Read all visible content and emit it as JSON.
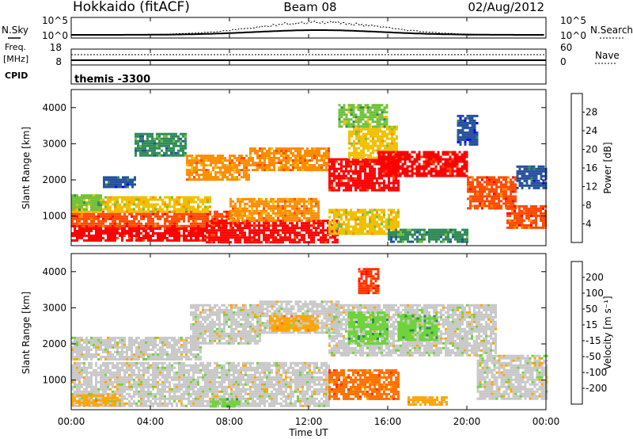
{
  "header": {
    "station": "Hokkaido (fitACF)",
    "beam": "Beam 08",
    "date": "02/Aug/2012"
  },
  "chart_data": {
    "type": "heatmap",
    "time_axis": {
      "label": "Time UT",
      "ticks": [
        "00:00",
        "04:00",
        "08:00",
        "12:00",
        "16:00",
        "20:00",
        "00:00"
      ],
      "range_hours": [
        0,
        24
      ]
    },
    "noise_panel": {
      "left_label": "N.Sky",
      "right_label": "N.Search",
      "left_ticks": [
        "10^5",
        "10^0"
      ],
      "right_ticks": [
        "10^5",
        "10^0"
      ]
    },
    "freq_panel": {
      "left_label_1": "Freq.",
      "left_label_2": "[MHz]",
      "right_label": "Nave",
      "left_ticks": [
        "18",
        "8"
      ],
      "right_ticks": [
        "60",
        "0"
      ]
    },
    "cpid_panel": {
      "label": "CPID",
      "value": "themis -3300"
    },
    "power_panel": {
      "ylabel": "Slant Range [km]",
      "yticks": [
        1000,
        2000,
        3000,
        4000
      ],
      "ylim": [
        180,
        4500
      ],
      "colorbar_label": "Power [dB]",
      "colorbar_ticks": [
        "28",
        "24",
        "20",
        "16",
        "12",
        "8",
        "4"
      ],
      "colors": [
        "#0000ff",
        "#24509c",
        "#2e8b57",
        "#6fc23b",
        "#f0c000",
        "#ff8c00",
        "#ff4a00",
        "#ff0000"
      ]
    },
    "velocity_panel": {
      "ylabel": "Slant Range [km]",
      "yticks": [
        1000,
        2000,
        3000,
        4000
      ],
      "ylim": [
        180,
        4500
      ],
      "colorbar_label": "Velocity [m s⁻¹]",
      "colorbar_ticks": [
        "200",
        "100",
        "50",
        "15",
        "-15",
        "-50",
        "-100",
        "-200"
      ],
      "colors": [
        "#2020c8",
        "#2f6fb0",
        "#2e8b57",
        "#6fd33b",
        "#c8c8c8",
        "#ffa500",
        "#ff7000",
        "#ff3000",
        "#ff0000"
      ]
    },
    "power_patches": [
      {
        "t0": 0.0,
        "t1": 6.8,
        "r0": 300,
        "r1": 750,
        "level": 7
      },
      {
        "t0": 0.0,
        "t1": 8.5,
        "r0": 750,
        "r1": 1150,
        "level": 6
      },
      {
        "t0": 0.0,
        "t1": 7.0,
        "r0": 1150,
        "r1": 1550,
        "level": 4
      },
      {
        "t0": 0.0,
        "t1": 1.5,
        "r0": 1200,
        "r1": 1600,
        "level": 3
      },
      {
        "t0": 6.8,
        "t1": 13.5,
        "r0": 300,
        "r1": 900,
        "level": 7
      },
      {
        "t0": 8.0,
        "t1": 12.5,
        "r0": 900,
        "r1": 1500,
        "level": 5
      },
      {
        "t0": 1.6,
        "t1": 3.2,
        "r0": 1800,
        "r1": 2100,
        "level": 1
      },
      {
        "t0": 3.2,
        "t1": 5.8,
        "r0": 2700,
        "r1": 3300,
        "level": 2
      },
      {
        "t0": 5.8,
        "t1": 9.0,
        "r0": 2000,
        "r1": 2700,
        "level": 5
      },
      {
        "t0": 9.0,
        "t1": 13.0,
        "r0": 2300,
        "r1": 2900,
        "level": 5
      },
      {
        "t0": 13.0,
        "t1": 16.5,
        "r0": 1700,
        "r1": 2600,
        "level": 7
      },
      {
        "t0": 14.0,
        "t1": 16.5,
        "r0": 2600,
        "r1": 3500,
        "level": 4
      },
      {
        "t0": 15.5,
        "t1": 20.0,
        "r0": 2100,
        "r1": 2800,
        "level": 7
      },
      {
        "t0": 20.0,
        "t1": 22.5,
        "r0": 1200,
        "r1": 2100,
        "level": 6
      },
      {
        "t0": 22.0,
        "t1": 24.0,
        "r0": 700,
        "r1": 1300,
        "level": 6
      },
      {
        "t0": 13.0,
        "t1": 16.5,
        "r0": 500,
        "r1": 1200,
        "level": 4
      },
      {
        "t0": 16.0,
        "t1": 20.0,
        "r0": 300,
        "r1": 650,
        "level": 2
      },
      {
        "t0": 13.5,
        "t1": 16.0,
        "r0": 3500,
        "r1": 4100,
        "level": 3
      },
      {
        "t0": 19.5,
        "t1": 20.5,
        "r0": 3000,
        "r1": 3800,
        "level": 1
      },
      {
        "t0": 22.5,
        "t1": 24.0,
        "r0": 1800,
        "r1": 2400,
        "level": 1
      }
    ],
    "velocity_patches": [
      {
        "t0": 0.0,
        "t1": 13.0,
        "r0": 300,
        "r1": 1500,
        "level": 4
      },
      {
        "t0": 0.0,
        "t1": 6.5,
        "r0": 1600,
        "r1": 2200,
        "level": 4
      },
      {
        "t0": 6.0,
        "t1": 9.5,
        "r0": 2000,
        "r1": 3100,
        "level": 4
      },
      {
        "t0": 9.5,
        "t1": 13.5,
        "r0": 2300,
        "r1": 3200,
        "level": 4
      },
      {
        "t0": 13.0,
        "t1": 21.5,
        "r0": 1700,
        "r1": 3100,
        "level": 4
      },
      {
        "t0": 20.5,
        "t1": 24.0,
        "r0": 500,
        "r1": 1700,
        "level": 4
      },
      {
        "t0": 14.0,
        "t1": 16.0,
        "r0": 2000,
        "r1": 2900,
        "level": 3
      },
      {
        "t0": 16.5,
        "t1": 18.5,
        "r0": 2100,
        "r1": 2800,
        "level": 3
      },
      {
        "t0": 13.0,
        "t1": 16.5,
        "r0": 500,
        "r1": 1300,
        "level": 6
      },
      {
        "t0": 10.0,
        "t1": 12.5,
        "r0": 2400,
        "r1": 2800,
        "level": 5
      },
      {
        "t0": 14.5,
        "t1": 15.5,
        "r0": 3400,
        "r1": 4100,
        "level": 7
      },
      {
        "t0": 7.0,
        "t1": 8.5,
        "r0": 300,
        "r1": 500,
        "level": 3
      },
      {
        "t0": 17.0,
        "t1": 19.0,
        "r0": 300,
        "r1": 550,
        "level": 5
      },
      {
        "t0": 0.0,
        "t1": 2.5,
        "r0": 300,
        "r1": 600,
        "level": 5
      }
    ]
  }
}
